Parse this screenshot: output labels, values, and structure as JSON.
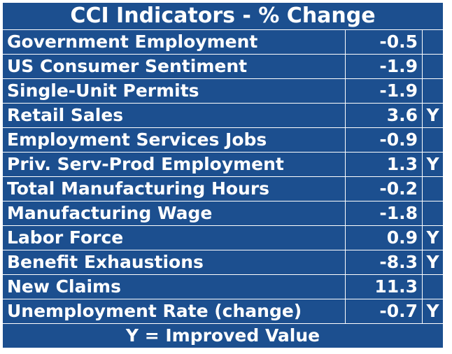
{
  "title": "CCI Indicators - % Change",
  "rows": [
    {
      "label": "Government Employment",
      "value": -0.5
    },
    {
      "label": "US Consumer Sentiment",
      "value": -1.9
    },
    {
      "label": "Single-Unit Permits",
      "value": -1.9
    },
    {
      "label": "Retail Sales",
      "value": 3.6,
      "flag": "Y"
    },
    {
      "label": "Employment Services Jobs",
      "value": -0.9
    },
    {
      "label": "Priv. Serv-Prod Employment",
      "value": 1.3,
      "flag": "Y"
    },
    {
      "label": "Total Manufacturing Hours",
      "value": -0.2
    },
    {
      "label": "Manufacturing Wage",
      "value": -1.8
    },
    {
      "label": "Labor Force",
      "value": 0.9,
      "flag": "Y"
    },
    {
      "label": "Benefit Exhaustions",
      "value": -8.3,
      "flag": "Y"
    },
    {
      "label": "New Claims",
      "value": 11.3
    },
    {
      "label": "Unemployment Rate (change)",
      "value": -0.7,
      "flag": "Y"
    }
  ],
  "footer": "Y = Improved Value"
}
